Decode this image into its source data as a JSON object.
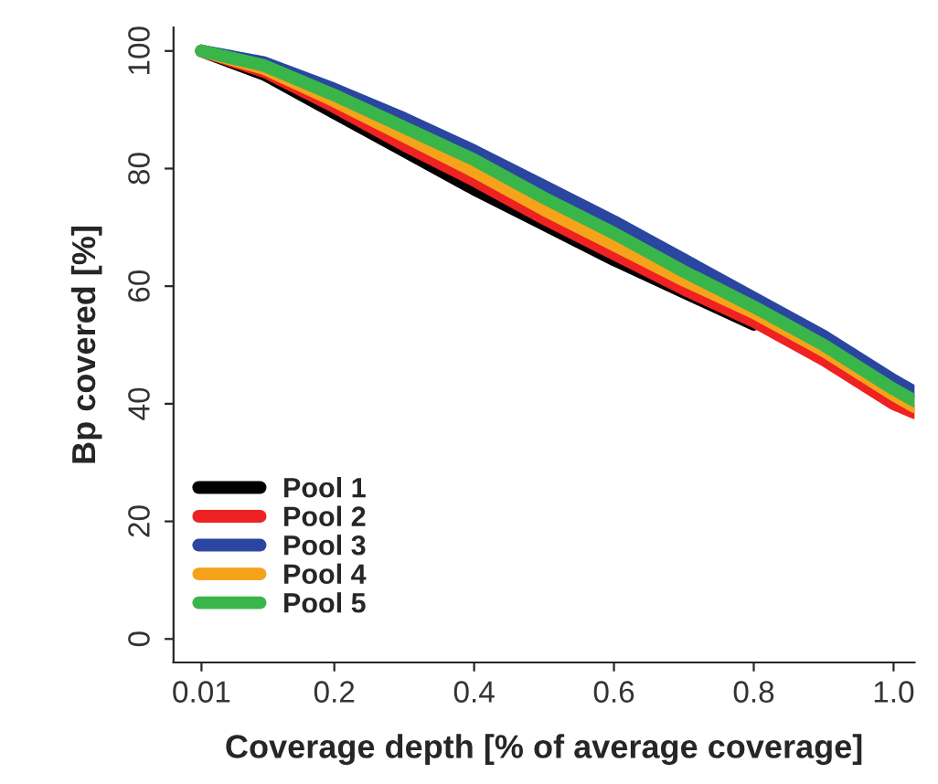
{
  "chart_data": {
    "type": "line",
    "xlabel": "Coverage depth [% of average coverage]",
    "ylabel": "Bp covered [%]",
    "x": [
      0.01,
      0.1,
      0.2,
      0.3,
      0.4,
      0.5,
      0.6,
      0.7,
      0.8,
      0.9,
      1.0,
      1.03
    ],
    "series": [
      {
        "name": "Pool 1",
        "color": "#000000",
        "values": [
          100,
          96,
          89.5,
          83,
          76.5,
          70.5,
          64.5,
          59,
          53.5,
          null,
          null,
          null
        ]
      },
      {
        "name": "Pool 2",
        "color": "#ee2222",
        "values": [
          100,
          96.5,
          90.5,
          84,
          78,
          71.5,
          65.5,
          59.5,
          54,
          47.5,
          40,
          38.5
        ]
      },
      {
        "name": "Pool 3",
        "color": "#2a46a0",
        "values": [
          100,
          98,
          93.5,
          88.5,
          83,
          77,
          71,
          64.5,
          58,
          51.5,
          44,
          42
        ]
      },
      {
        "name": "Pool 4",
        "color": "#f5a31a",
        "values": [
          100,
          97,
          91.5,
          85.5,
          79.5,
          73,
          67,
          61,
          55.5,
          49,
          41.5,
          39.5
        ]
      },
      {
        "name": "Pool 5",
        "color": "#3ab54a",
        "values": [
          100,
          97.5,
          92.5,
          87,
          81.5,
          75,
          69,
          62.5,
          56.5,
          50,
          42.5,
          40.5
        ]
      }
    ],
    "xlim": [
      -0.03,
      1.03
    ],
    "ylim": [
      -4,
      104
    ],
    "xticks": [
      0.01,
      0.2,
      0.4,
      0.6,
      0.8,
      {
        "value": 1.0,
        "label": "1.0"
      }
    ],
    "yticks": [
      0,
      20,
      40,
      60,
      80,
      100
    ],
    "grid": false,
    "legend": "bottom left",
    "marker": "none",
    "line_style": "solid"
  }
}
